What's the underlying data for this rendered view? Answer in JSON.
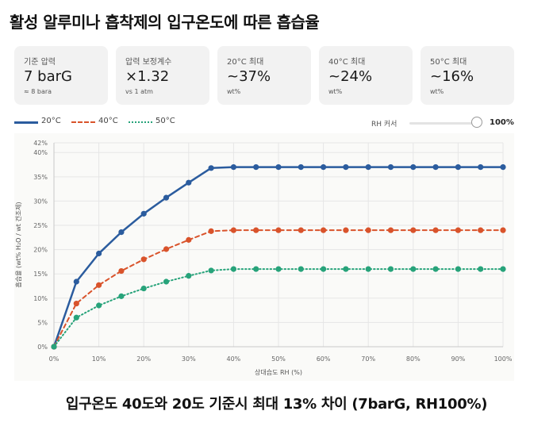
{
  "title": "활성 알루미나 흡착제의 입구온도에 따른 흡습율",
  "cards": [
    {
      "label": "기준 압력",
      "value": "7 barG",
      "sub": "≈ 8 bara"
    },
    {
      "label": "압력 보정계수",
      "value": "×1.32",
      "sub": "vs 1 atm"
    },
    {
      "label": "20°C 최대",
      "value": "~37%",
      "sub": "wt%"
    },
    {
      "label": "40°C 최대",
      "value": "~24%",
      "sub": "wt%"
    },
    {
      "label": "50°C 최대",
      "value": "~16%",
      "sub": "wt%"
    }
  ],
  "rh_control": {
    "label": "RH 커서",
    "value_text": "100%",
    "value": 1.0
  },
  "footer": "입구온도 40도와 20도 기준시 최대 13% 차이 (7barG, RH100%)",
  "colors": {
    "20C": "#2b5c9e",
    "40C": "#d9532b",
    "50C": "#27a37a"
  },
  "chart_data": {
    "type": "line",
    "xlabel": "상대습도 RH (%)",
    "ylabel": "흡습율 (wt% H₂O / wt 건조제)",
    "xlim": [
      0,
      100
    ],
    "ylim": [
      0,
      42
    ],
    "x_ticks": [
      "0%",
      "10%",
      "20%",
      "30%",
      "40%",
      "50%",
      "60%",
      "70%",
      "80%",
      "90%",
      "100%"
    ],
    "y_ticks": [
      "0%",
      "5%",
      "10%",
      "15%",
      "20%",
      "25%",
      "30%",
      "35%",
      "40%",
      "42%"
    ],
    "grid": true,
    "legend_position": "top-left",
    "x": [
      0,
      5,
      10,
      15,
      20,
      25,
      30,
      35,
      40,
      45,
      50,
      55,
      60,
      65,
      70,
      75,
      80,
      85,
      90,
      95,
      100
    ],
    "series": [
      {
        "name": "20°C",
        "style": "solid",
        "values": [
          0,
          13.4,
          19.2,
          23.6,
          27.4,
          30.7,
          33.8,
          36.8,
          37,
          37,
          37,
          37,
          37,
          37,
          37,
          37,
          37,
          37,
          37,
          37,
          37
        ]
      },
      {
        "name": "40°C",
        "style": "dashed",
        "values": [
          0,
          8.9,
          12.7,
          15.6,
          18.0,
          20.1,
          22.0,
          23.8,
          24,
          24,
          24,
          24,
          24,
          24,
          24,
          24,
          24,
          24,
          24,
          24,
          24
        ]
      },
      {
        "name": "50°C",
        "style": "dotted",
        "values": [
          0,
          6.0,
          8.5,
          10.4,
          12.0,
          13.4,
          14.6,
          15.7,
          16,
          16,
          16,
          16,
          16,
          16,
          16,
          16,
          16,
          16,
          16,
          16,
          16
        ]
      }
    ]
  }
}
